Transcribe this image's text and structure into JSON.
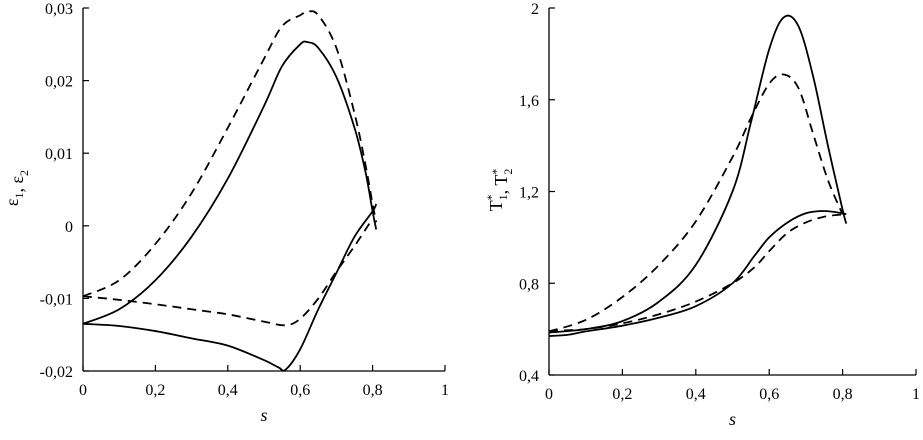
{
  "chart_data": [
    {
      "type": "line",
      "xlabel": "s",
      "ylabel_parts": [
        {
          "t": "ε",
          "sub": "1"
        },
        {
          "t": ", ε",
          "sub": "2"
        }
      ],
      "xlim": [
        0,
        1
      ],
      "ylim": [
        -0.02,
        0.03
      ],
      "xticks": [
        0,
        0.2,
        0.4,
        0.6,
        0.8,
        1
      ],
      "xtick_labels": [
        "0",
        "0,2",
        "0,4",
        "0,6",
        "0,8",
        "1"
      ],
      "yticks": [
        -0.02,
        -0.01,
        0,
        0.01,
        0.02,
        0.03
      ],
      "ytick_labels": [
        "-0,02",
        "-0,01",
        "0",
        "0,01",
        "0,02",
        "0,03"
      ],
      "grid": false,
      "series": [
        {
          "style": "solid",
          "x": [
            0,
            0.1,
            0.2,
            0.3,
            0.4,
            0.5,
            0.55,
            0.6,
            0.62,
            0.65,
            0.7,
            0.75,
            0.78,
            0.8,
            0.81
          ],
          "y": [
            -0.0135,
            -0.0115,
            -0.0075,
            -0.0015,
            0.0065,
            0.0165,
            0.022,
            0.025,
            0.0253,
            0.0245,
            0.0205,
            0.0135,
            0.0075,
            0.002,
            -0.0005
          ]
        },
        {
          "style": "dashed",
          "x": [
            0,
            0.1,
            0.2,
            0.3,
            0.4,
            0.5,
            0.55,
            0.6,
            0.62,
            0.65,
            0.7,
            0.75,
            0.78,
            0.8,
            0.81
          ],
          "y": [
            -0.0097,
            -0.0075,
            -0.0025,
            0.0045,
            0.0135,
            0.023,
            0.0275,
            0.029,
            0.0295,
            0.029,
            0.0245,
            0.0155,
            0.0085,
            0.003,
            0.0005
          ]
        },
        {
          "style": "solid",
          "x": [
            0,
            0.1,
            0.2,
            0.3,
            0.4,
            0.5,
            0.54,
            0.56,
            0.6,
            0.65,
            0.7,
            0.75,
            0.8,
            0.81
          ],
          "y": [
            -0.0135,
            -0.0138,
            -0.0145,
            -0.0155,
            -0.0165,
            -0.0185,
            -0.0195,
            -0.0198,
            -0.017,
            -0.0115,
            -0.0065,
            -0.0015,
            0.002,
            0.003
          ]
        },
        {
          "style": "dashed",
          "x": [
            0,
            0.1,
            0.2,
            0.3,
            0.4,
            0.5,
            0.56,
            0.6,
            0.65,
            0.7,
            0.75,
            0.8
          ],
          "y": [
            -0.0097,
            -0.0102,
            -0.0108,
            -0.0115,
            -0.0122,
            -0.0132,
            -0.0137,
            -0.0128,
            -0.01,
            -0.0063,
            -0.0028,
            0.001
          ]
        }
      ]
    },
    {
      "type": "line",
      "xlabel": "s",
      "ylabel_parts": [
        {
          "t": "T",
          "sub": "1",
          "sup": "*"
        },
        {
          "t": ", T",
          "sub": "2",
          "sup": "*"
        }
      ],
      "xlim": [
        0,
        1
      ],
      "ylim": [
        0.4,
        2
      ],
      "xticks": [
        0,
        0.2,
        0.4,
        0.6,
        0.8,
        1
      ],
      "xtick_labels": [
        "0",
        "0,2",
        "0,4",
        "0,6",
        "0,8",
        "1"
      ],
      "yticks": [
        0.4,
        0.8,
        1.2,
        1.6,
        2
      ],
      "ytick_labels": [
        "0,4",
        "0,8",
        "1,2",
        "1,6",
        "2"
      ],
      "grid": false,
      "series": [
        {
          "style": "solid",
          "x": [
            0,
            0.1,
            0.2,
            0.3,
            0.4,
            0.5,
            0.55,
            0.6,
            0.64,
            0.68,
            0.72,
            0.76,
            0.8,
            0.81
          ],
          "y": [
            0.585,
            0.6,
            0.635,
            0.72,
            0.88,
            1.2,
            1.5,
            1.82,
            1.96,
            1.92,
            1.7,
            1.4,
            1.12,
            1.06
          ]
        },
        {
          "style": "dashed",
          "x": [
            0,
            0.1,
            0.2,
            0.3,
            0.4,
            0.5,
            0.55,
            0.6,
            0.64,
            0.68,
            0.72,
            0.76,
            0.8
          ],
          "y": [
            0.59,
            0.64,
            0.74,
            0.88,
            1.07,
            1.35,
            1.52,
            1.67,
            1.71,
            1.65,
            1.45,
            1.25,
            1.1
          ]
        },
        {
          "style": "solid",
          "x": [
            0,
            0.05,
            0.1,
            0.2,
            0.3,
            0.4,
            0.5,
            0.56,
            0.6,
            0.65,
            0.7,
            0.75,
            0.8,
            0.81
          ],
          "y": [
            0.57,
            0.575,
            0.59,
            0.615,
            0.65,
            0.7,
            0.8,
            0.92,
            1.0,
            1.065,
            1.105,
            1.115,
            1.105,
            1.1
          ]
        },
        {
          "style": "dashed",
          "x": [
            0,
            0.05,
            0.1,
            0.2,
            0.3,
            0.4,
            0.5,
            0.56,
            0.6,
            0.65,
            0.7,
            0.75,
            0.8
          ],
          "y": [
            0.59,
            0.595,
            0.6,
            0.625,
            0.665,
            0.72,
            0.8,
            0.87,
            0.94,
            1.02,
            1.065,
            1.09,
            1.1
          ]
        }
      ]
    }
  ]
}
